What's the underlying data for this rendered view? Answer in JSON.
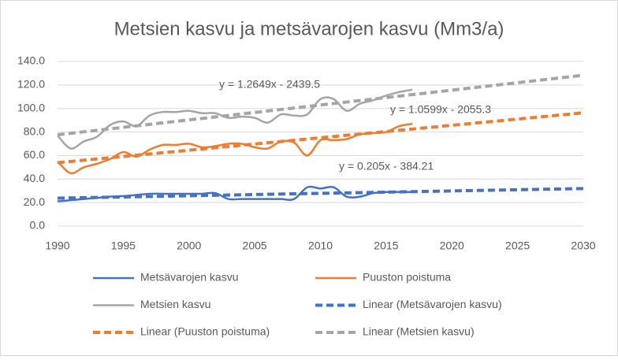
{
  "chart_data": {
    "type": "line",
    "title": "Metsien kasvu ja metsävarojen kasvu (Mm3/a)",
    "x": [
      1990,
      1991,
      1992,
      1993,
      1994,
      1995,
      1996,
      1997,
      1998,
      1999,
      2000,
      2001,
      2002,
      2003,
      2004,
      2005,
      2006,
      2007,
      2008,
      2009,
      2010,
      2011,
      2012,
      2013,
      2014,
      2015,
      2016,
      2017
    ],
    "series": [
      {
        "name": "Metsävarojen kasvu",
        "color": "#4472c4",
        "dashed": false,
        "values": [
          21,
          22,
          23,
          24,
          25,
          25.5,
          26.5,
          27.5,
          27.5,
          27.5,
          27.5,
          27.5,
          28,
          23,
          23,
          23,
          23,
          23,
          23,
          33,
          32,
          33,
          25,
          25,
          28,
          29,
          29,
          29
        ]
      },
      {
        "name": "Puuston poistuma",
        "color": "#ed7d31",
        "dashed": false,
        "values": [
          55,
          45,
          50,
          53,
          57,
          63,
          59,
          65,
          69,
          69,
          70,
          67,
          68,
          70,
          70,
          67,
          66,
          72,
          71,
          60,
          73,
          73,
          74,
          78,
          79,
          80,
          85,
          87
        ]
      },
      {
        "name": "Metsien kasvu",
        "color": "#a5a5a5",
        "dashed": false,
        "values": [
          77,
          66,
          72,
          76,
          86,
          89,
          85,
          94,
          97,
          97,
          98,
          96,
          96,
          92,
          93,
          92,
          88,
          95,
          94,
          95,
          108,
          108,
          98,
          104,
          107,
          111,
          114,
          116
        ]
      },
      {
        "name": "Linear (Metsävarojen kasvu)",
        "color": "#4472c4",
        "dashed": true,
        "x": [
          1990,
          2030
        ],
        "values": [
          23.74,
          31.94
        ]
      },
      {
        "name": "Linear (Puuston poistuma)",
        "color": "#ed7d31",
        "dashed": true,
        "x": [
          1990,
          2030
        ],
        "values": [
          53.9,
          96.3
        ]
      },
      {
        "name": "Linear (Metsien kasvu)",
        "color": "#a5a5a5",
        "dashed": true,
        "x": [
          1990,
          2030
        ],
        "values": [
          77.65,
          128.25
        ]
      }
    ],
    "annotations": [
      "y = 0.205x - 384.21",
      "y = 1.0599x - 2055.3",
      "y = 1.2649x - 2439.5"
    ],
    "xlim": [
      1990,
      2030
    ],
    "xticks": [
      1990,
      1995,
      2000,
      2005,
      2010,
      2015,
      2020,
      2025,
      2030
    ],
    "ylim": [
      0,
      140
    ],
    "yticks": [
      {
        "value": 0,
        "label": "0.0"
      },
      {
        "value": 20,
        "label": "20.0"
      },
      {
        "value": 40,
        "label": "40.0"
      },
      {
        "value": 60,
        "label": "60.0"
      },
      {
        "value": 80,
        "label": "80.0"
      },
      {
        "value": 100,
        "label": "100.0"
      },
      {
        "value": 120,
        "label": "120.0"
      },
      {
        "value": 140,
        "label": "140.0"
      }
    ],
    "grid": true
  }
}
